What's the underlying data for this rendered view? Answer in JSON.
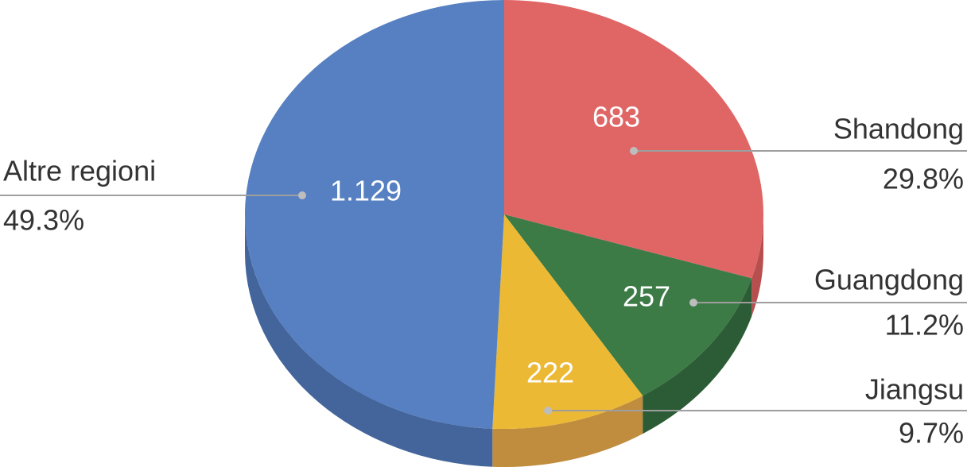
{
  "chart_data": {
    "type": "pie3d",
    "categories": [
      "Shandong",
      "Guangdong",
      "Jiangsu",
      "Altre regioni"
    ],
    "values": [
      683,
      257,
      222,
      1129
    ],
    "value_labels": [
      "683",
      "257",
      "222",
      "1.129"
    ],
    "percent_labels": [
      "29.8%",
      "11.2%",
      "9.7%",
      "49.3%"
    ],
    "colors": [
      "#e06666",
      "#3c7a46",
      "#ecb935",
      "#5680c1"
    ],
    "side_colors": [
      "#b84f4f",
      "#2c5c35",
      "#c08d3e",
      "#44659b"
    ]
  }
}
